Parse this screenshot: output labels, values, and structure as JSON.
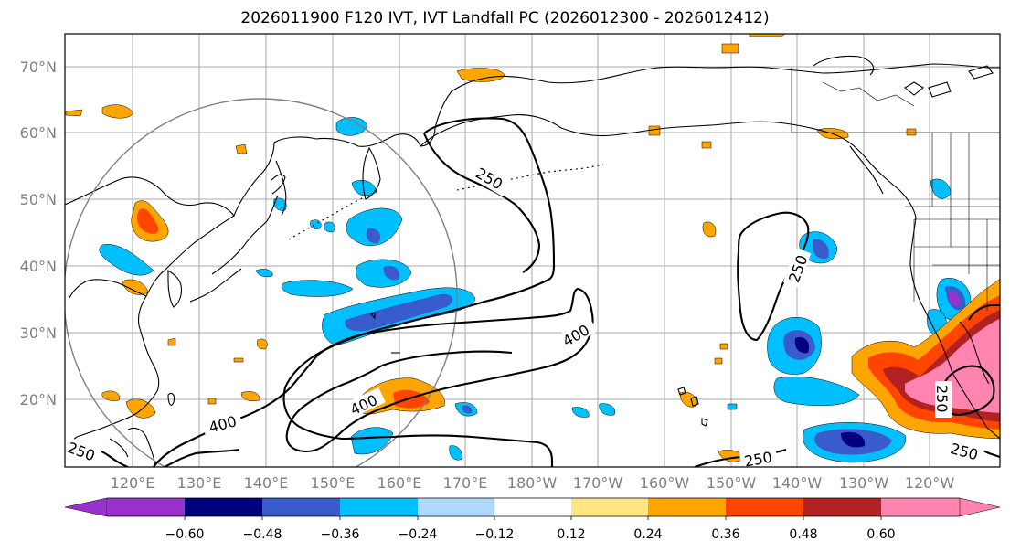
{
  "title": "2026011900 F120 IVT, IVT Landfall PC (2026012300 - 2026012412)",
  "lat_labels": [
    "70°N",
    "60°N",
    "50°N",
    "40°N",
    "30°N",
    "20°N"
  ],
  "lon_labels": [
    "120°E",
    "130°E",
    "140°E",
    "150°E",
    "160°E",
    "170°E",
    "180°W",
    "170°W",
    "160°W",
    "150°W",
    "140°W",
    "130°W",
    "120°W"
  ],
  "contour_labels": {
    "c250_north": "250",
    "c400_west": "400",
    "c400_south": "400",
    "c400_center": "400",
    "c250_sw": "250",
    "c250_east": "250",
    "c250_se": "250",
    "c250_coast": "250",
    "c250_far": "250"
  },
  "colorbar": {
    "ticks": [
      "−0.60",
      "−0.48",
      "−0.36",
      "−0.24",
      "−0.12",
      "0.12",
      "0.24",
      "0.36",
      "0.48",
      "0.60"
    ],
    "colors": {
      "under": "#9932CC",
      "c1": "#000080",
      "c2": "#3A5BCC",
      "c3": "#00BFFF",
      "c4": "#ADD8FF",
      "mid": "#FFFFFF",
      "c6": "#FFE680",
      "c7": "#FFA500",
      "c8": "#FF4500",
      "c9": "#B22222",
      "over": "#FF85B0"
    }
  }
}
